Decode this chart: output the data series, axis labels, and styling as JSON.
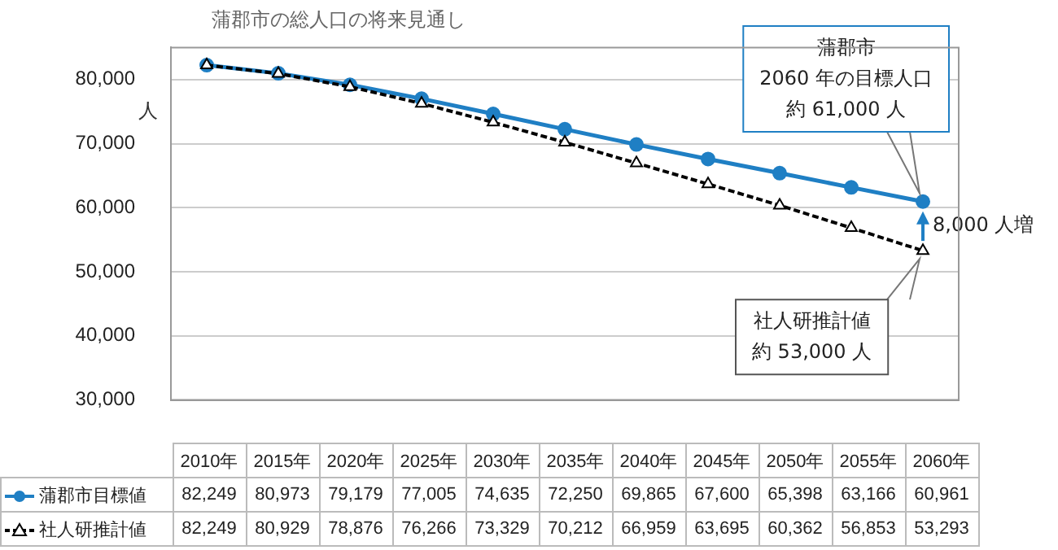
{
  "chart_data": {
    "type": "line",
    "title": "蒲郡市の総人口の将来見通し",
    "ylabel": "人",
    "categories": [
      "2010年",
      "2015年",
      "2020年",
      "2025年",
      "2030年",
      "2035年",
      "2040年",
      "2045年",
      "2050年",
      "2055年",
      "2060年"
    ],
    "series": [
      {
        "name": "蒲郡市目標値",
        "color": "#1f7fc4",
        "marker": "circle",
        "line_style": "solid",
        "values": [
          82249,
          80973,
          79179,
          77005,
          74635,
          72250,
          69865,
          67600,
          65398,
          63166,
          60961
        ],
        "value_labels": [
          "82,249",
          "80,973",
          "79,179",
          "77,005",
          "74,635",
          "72,250",
          "69,865",
          "67,600",
          "65,398",
          "63,166",
          "60,961"
        ]
      },
      {
        "name": "社人研推計値",
        "color": "#000000",
        "marker": "triangle",
        "line_style": "dashed",
        "values": [
          82249,
          80929,
          78876,
          76266,
          73329,
          70212,
          66959,
          63695,
          60362,
          56853,
          53293
        ],
        "value_labels": [
          "82,249",
          "80,929",
          "78,876",
          "76,266",
          "73,329",
          "70,212",
          "66,959",
          "63,695",
          "60,362",
          "56,853",
          "53,293"
        ]
      }
    ],
    "ylim": [
      30000,
      85000
    ],
    "yticks": [
      {
        "value": 30000,
        "label": "30,000"
      },
      {
        "value": 40000,
        "label": "40,000"
      },
      {
        "value": 50000,
        "label": "50,000"
      },
      {
        "value": 60000,
        "label": "60,000"
      },
      {
        "value": 70000,
        "label": "70,000"
      },
      {
        "value": 80000,
        "label": "80,000"
      }
    ],
    "grid": "y",
    "tick_labels": "y",
    "legend": "bottom",
    "annotations": [
      "蒲郡市",
      "2060 年の目標人口",
      "約 61,000 人",
      "社人研推計値",
      "約 53,000 人",
      "8,000 人増"
    ]
  }
}
